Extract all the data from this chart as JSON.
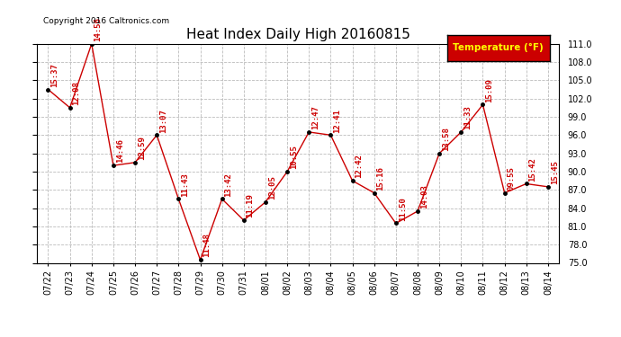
{
  "title": "Heat Index Daily High 20160815",
  "copyright": "Copyright 2016 Caltronics.com",
  "legend_label": "Temperature (°F)",
  "legend_bg": "#cc0000",
  "legend_fg": "#ffff00",
  "ylim": [
    75.0,
    111.0
  ],
  "yticks": [
    75.0,
    78.0,
    81.0,
    84.0,
    87.0,
    90.0,
    93.0,
    96.0,
    99.0,
    102.0,
    105.0,
    108.0,
    111.0
  ],
  "dates": [
    "07/22",
    "07/23",
    "07/24",
    "07/25",
    "07/26",
    "07/27",
    "07/28",
    "07/29",
    "07/30",
    "07/31",
    "08/01",
    "08/02",
    "08/03",
    "08/04",
    "08/05",
    "08/06",
    "08/07",
    "08/08",
    "08/09",
    "08/10",
    "08/11",
    "08/12",
    "08/13",
    "08/14"
  ],
  "values": [
    103.5,
    100.5,
    111.0,
    91.0,
    91.5,
    96.0,
    85.5,
    75.5,
    85.5,
    82.0,
    85.0,
    90.0,
    96.5,
    96.0,
    88.5,
    86.5,
    81.5,
    83.5,
    93.0,
    96.5,
    101.0,
    86.5,
    88.0,
    87.5
  ],
  "labels": [
    "15:37",
    "12:08",
    "14:56",
    "14:46",
    "12:59",
    "13:07",
    "11:43",
    "11:48",
    "13:42",
    "11:19",
    "12:05",
    "10:55",
    "12:47",
    "12:41",
    "12:42",
    "15:16",
    "11:50",
    "14:03",
    "13:58",
    "11:33",
    "15:09",
    "09:55",
    "15:42",
    "15:45"
  ],
  "line_color": "#cc0000",
  "marker_color": "#000000",
  "label_color": "#cc0000",
  "bg_color": "#ffffff",
  "grid_color": "#bbbbbb",
  "title_color": "#000000",
  "title_fontsize": 11,
  "label_fontsize": 6.5,
  "tick_fontsize": 7,
  "copyright_fontsize": 6.5
}
